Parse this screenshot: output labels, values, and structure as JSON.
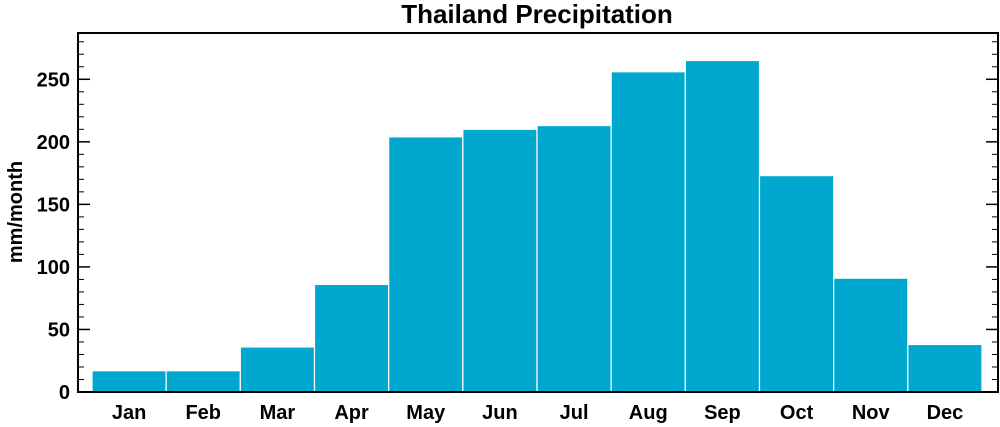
{
  "colors": {
    "bar": "#00a8d0",
    "bar_edge": "#ffffff",
    "axis": "#000000"
  },
  "chart_data": {
    "type": "bar",
    "title": "Thailand Precipitation",
    "xlabel": "",
    "ylabel": "mm/month",
    "categories": [
      "Jan",
      "Feb",
      "Mar",
      "Apr",
      "May",
      "Jun",
      "Jul",
      "Aug",
      "Sep",
      "Oct",
      "Nov",
      "Dec"
    ],
    "values": [
      17,
      17,
      36,
      86,
      204,
      210,
      213,
      256,
      265,
      173,
      91,
      38
    ],
    "ylim": [
      0,
      287
    ],
    "yticks": [
      0,
      50,
      100,
      150,
      200,
      250
    ],
    "grid": false,
    "legend": "none"
  }
}
